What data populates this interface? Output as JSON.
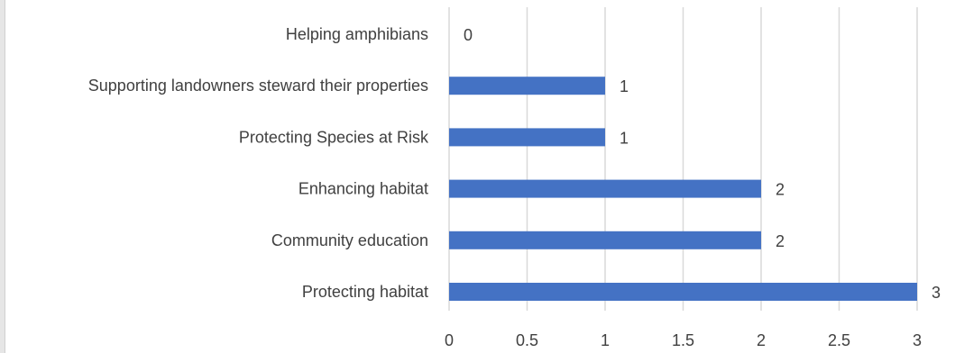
{
  "chart_data": {
    "type": "bar",
    "orientation": "horizontal",
    "categories": [
      "Helping amphibians",
      "Supporting landowners steward their properties",
      "Protecting Species at Risk",
      "Enhancing habitat",
      "Community education",
      "Protecting habitat"
    ],
    "values": [
      0,
      1,
      1,
      2,
      2,
      3
    ],
    "data_labels": [
      "0",
      "1",
      "1",
      "2",
      "2",
      "3"
    ],
    "x_ticks": [
      "0",
      "0.5",
      "1",
      "1.5",
      "2",
      "2.5",
      "3"
    ],
    "xlim": [
      0,
      3
    ],
    "grid": true,
    "legend": "none",
    "bar_color": "#4472C4",
    "gridline_color": "#d9d9d9"
  }
}
